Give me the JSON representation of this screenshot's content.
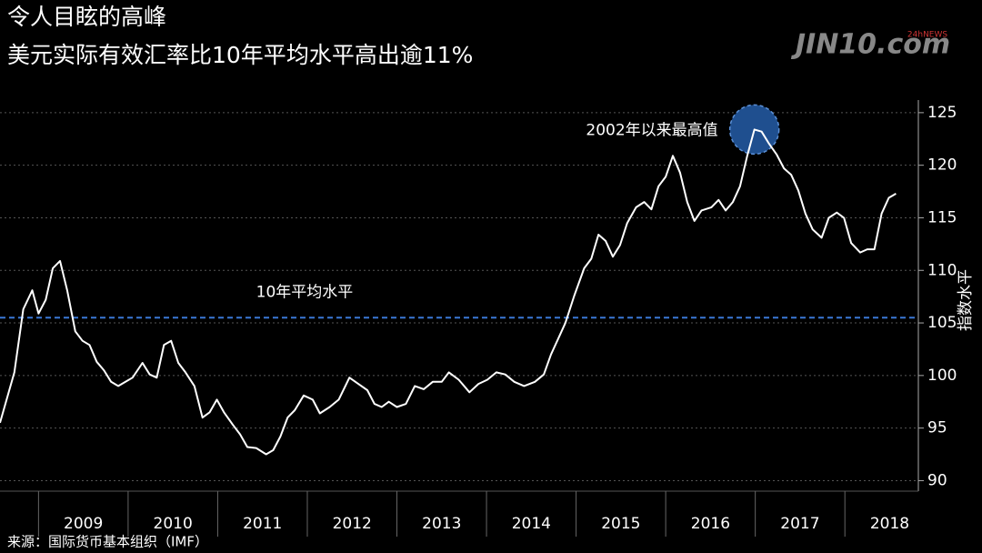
{
  "chart_data": {
    "type": "line",
    "title": "令人目眩的高峰",
    "subtitle": "美元实际有效汇率比10年平均水平高出逾11%",
    "y_axis_label": "指数水平",
    "source": "来源：国际货币基本组织（IMF）",
    "watermark": "JIN10.com",
    "watermark_badge": "24hNEWS",
    "x": [
      2008.57,
      2008.73,
      2008.83,
      2008.93,
      2009.0,
      2009.08,
      2009.16,
      2009.24,
      2009.32,
      2009.41,
      2009.49,
      2009.57,
      2009.65,
      2009.73,
      2009.81,
      2009.89,
      2009.97,
      2010.05,
      2010.16,
      2010.24,
      2010.32,
      2010.4,
      2010.48,
      2010.56,
      2010.64,
      2010.74,
      2010.83,
      2010.91,
      2010.99,
      2011.07,
      2011.17,
      2011.25,
      2011.33,
      2011.43,
      2011.54,
      2011.62,
      2011.7,
      2011.78,
      2011.86,
      2011.96,
      2012.06,
      2012.14,
      2012.25,
      2012.35,
      2012.47,
      2012.57,
      2012.67,
      2012.75,
      2012.83,
      2012.91,
      2013.0,
      2013.1,
      2013.2,
      2013.3,
      2013.4,
      2013.5,
      2013.58,
      2013.69,
      2013.81,
      2013.91,
      2014.01,
      2014.11,
      2014.21,
      2014.31,
      2014.42,
      2014.54,
      2014.64,
      2014.72,
      2014.8,
      2014.88,
      2014.98,
      2015.09,
      2015.17,
      2015.25,
      2015.33,
      2015.41,
      2015.49,
      2015.57,
      2015.67,
      2015.76,
      2015.84,
      2015.92,
      2016.0,
      2016.08,
      2016.16,
      2016.24,
      2016.32,
      2016.4,
      2016.51,
      2016.59,
      2016.67,
      2016.75,
      2016.83,
      2016.91,
      2016.99,
      2017.07,
      2017.15,
      2017.24,
      2017.32,
      2017.4,
      2017.48,
      2017.56,
      2017.64,
      2017.74,
      2017.82,
      2017.91,
      2017.99,
      2018.07,
      2018.17,
      2018.25,
      2018.33,
      2018.41,
      2018.49,
      2018.57
    ],
    "series": [
      {
        "name": "美元实际有效汇率",
        "color": "#ffffff",
        "values": [
          95.5,
          100.3,
          106.3,
          108.1,
          105.9,
          107.2,
          110.2,
          110.9,
          108.1,
          104.2,
          103.3,
          102.9,
          101.3,
          100.5,
          99.4,
          99.0,
          99.4,
          99.8,
          101.2,
          100.1,
          99.8,
          102.9,
          103.3,
          101.2,
          100.3,
          99.0,
          96.0,
          96.5,
          97.7,
          96.5,
          95.3,
          94.4,
          93.2,
          93.1,
          92.5,
          92.9,
          94.2,
          96.0,
          96.7,
          98.1,
          97.7,
          96.4,
          97.0,
          97.7,
          99.8,
          99.2,
          98.6,
          97.3,
          97.0,
          97.5,
          97.0,
          97.3,
          99.0,
          98.7,
          99.4,
          99.4,
          100.3,
          99.6,
          98.4,
          99.2,
          99.6,
          100.3,
          100.1,
          99.4,
          99.0,
          99.4,
          100.1,
          102.0,
          103.5,
          105.0,
          107.6,
          110.2,
          111.1,
          113.4,
          112.8,
          111.3,
          112.4,
          114.5,
          116.0,
          116.5,
          115.8,
          118.0,
          118.9,
          120.9,
          119.3,
          116.5,
          114.7,
          115.7,
          116.0,
          116.7,
          115.7,
          116.5,
          118.0,
          120.9,
          123.4,
          123.2,
          122.1,
          121.0,
          119.7,
          119.1,
          117.6,
          115.4,
          113.9,
          113.1,
          115.0,
          115.5,
          115.0,
          112.6,
          111.7,
          112.0,
          112.0,
          115.4,
          116.9,
          117.3
        ]
      }
    ],
    "xlim": [
      2008.57,
      2018.82
    ],
    "xticks": [
      2009,
      2010,
      2011,
      2012,
      2013,
      2014,
      2015,
      2016,
      2017,
      2018
    ],
    "ylim": [
      89,
      126.2
    ],
    "yticks": [
      90,
      95,
      100,
      105,
      110,
      115,
      120,
      125
    ],
    "grid": true,
    "reference_line": {
      "value": 105.5,
      "label": "10年平均水平",
      "color": "#3a78d6"
    },
    "annotation": {
      "text": "2002年以来最高值",
      "x": 2016.99,
      "y": 123.4,
      "color": "#1f4f8f"
    }
  }
}
